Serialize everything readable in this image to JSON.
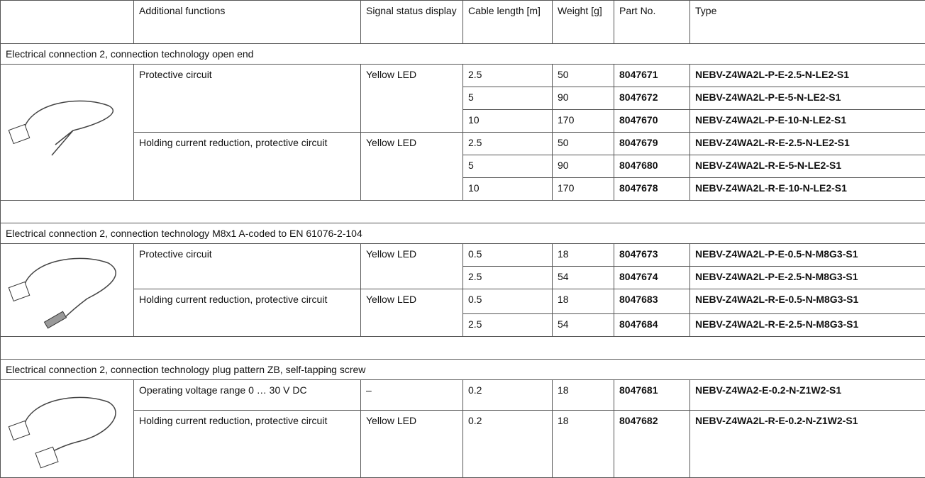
{
  "header": [
    "Additional functions",
    "Signal status display",
    "Cable length [m]",
    "Weight [g]",
    "Part No.",
    "Type"
  ],
  "sections": [
    {
      "title": "Electrical connection 2, connection technology open end",
      "groups": [
        {
          "function": "Protective circuit",
          "signal": "Yellow LED",
          "variants": [
            {
              "cable": "2.5",
              "weight": "50",
              "part": "8047671",
              "type": "NEBV-Z4WA2L-P-E-2.5-N-LE2-S1"
            },
            {
              "cable": "5",
              "weight": "90",
              "part": "8047672",
              "type": "NEBV-Z4WA2L-P-E-5-N-LE2-S1"
            },
            {
              "cable": "10",
              "weight": "170",
              "part": "8047670",
              "type": "NEBV-Z4WA2L-P-E-10-N-LE2-S1"
            }
          ]
        },
        {
          "function": "Holding current reduction, protective circuit",
          "signal": "Yellow LED",
          "variants": [
            {
              "cable": "2.5",
              "weight": "50",
              "part": "8047679",
              "type": "NEBV-Z4WA2L-R-E-2.5-N-LE2-S1"
            },
            {
              "cable": "5",
              "weight": "90",
              "part": "8047680",
              "type": "NEBV-Z4WA2L-R-E-5-N-LE2-S1"
            },
            {
              "cable": "10",
              "weight": "170",
              "part": "8047678",
              "type": "NEBV-Z4WA2L-R-E-10-N-LE2-S1"
            }
          ]
        }
      ]
    },
    {
      "title": "Electrical connection 2, connection technology M8x1 A-coded to EN 61076-2-104",
      "groups": [
        {
          "function": "Protective circuit",
          "signal": "Yellow LED",
          "variants": [
            {
              "cable": "0.5",
              "weight": "18",
              "part": "8047673",
              "type": "NEBV-Z4WA2L-P-E-0.5-N-M8G3-S1"
            },
            {
              "cable": "2.5",
              "weight": "54",
              "part": "8047674",
              "type": "NEBV-Z4WA2L-P-E-2.5-N-M8G3-S1"
            }
          ]
        },
        {
          "function": "Holding current reduction, protective circuit",
          "signal": "Yellow LED",
          "variants": [
            {
              "cable": "0.5",
              "weight": "18",
              "part": "8047683",
              "type": "NEBV-Z4WA2L-R-E-0.5-N-M8G3-S1"
            },
            {
              "cable": "2.5",
              "weight": "54",
              "part": "8047684",
              "type": "NEBV-Z4WA2L-R-E-2.5-N-M8G3-S1"
            }
          ]
        }
      ]
    },
    {
      "title": "Electrical connection 2, connection technology plug pattern ZB, self-tapping screw",
      "groups": [
        {
          "function": "Operating voltage range 0 … 30 V DC",
          "signal": "–",
          "variants": [
            {
              "cable": "0.2",
              "weight": "18",
              "part": "8047681",
              "type": "NEBV-Z4WA2-E-0.2-N-Z1W2-S1"
            }
          ]
        },
        {
          "function": "Holding current reduction, protective circuit",
          "signal": "Yellow LED",
          "variants": [
            {
              "cable": "0.2",
              "weight": "18",
              "part": "8047682",
              "type": "NEBV-Z4WA2L-R-E-0.2-N-Z1W2-S1"
            }
          ]
        }
      ]
    }
  ]
}
